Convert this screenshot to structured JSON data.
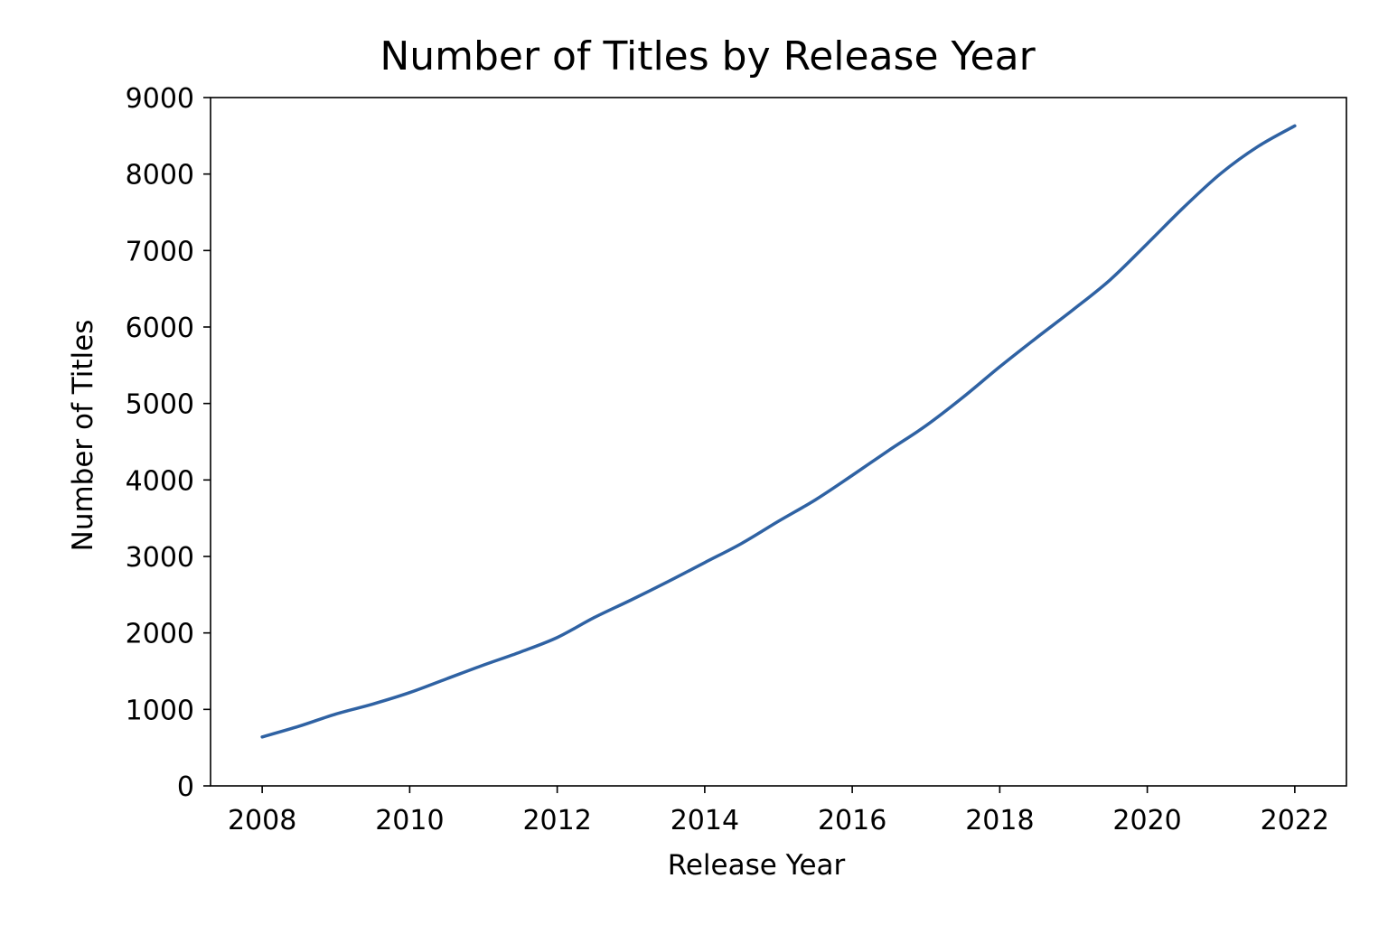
{
  "chart_data": {
    "type": "line",
    "title": "Number of Titles by Release Year",
    "xlabel": "Release Year",
    "ylabel": "Number of Titles",
    "xlim": [
      2007.3,
      2022.7
    ],
    "ylim": [
      0,
      9000
    ],
    "x_ticks": [
      2008,
      2010,
      2012,
      2014,
      2016,
      2018,
      2020,
      2022
    ],
    "y_ticks": [
      0,
      1000,
      2000,
      3000,
      4000,
      5000,
      6000,
      7000,
      8000,
      9000
    ],
    "grid": false,
    "legend": "none",
    "series": [
      {
        "color": "#2f62a3",
        "x": [
          2008,
          2008.5,
          2009,
          2009.5,
          2010,
          2010.5,
          2011,
          2011.5,
          2012,
          2012.5,
          2013,
          2013.5,
          2014,
          2014.5,
          2015,
          2015.5,
          2016,
          2016.5,
          2017,
          2017.5,
          2018,
          2018.5,
          2019,
          2019.5,
          2020,
          2020.5,
          2021,
          2021.5,
          2022
        ],
        "values": [
          640,
          780,
          940,
          1070,
          1220,
          1400,
          1580,
          1750,
          1940,
          2200,
          2430,
          2670,
          2920,
          3170,
          3460,
          3740,
          4060,
          4390,
          4710,
          5080,
          5480,
          5860,
          6230,
          6620,
          7090,
          7570,
          8010,
          8360,
          8630
        ]
      }
    ]
  }
}
